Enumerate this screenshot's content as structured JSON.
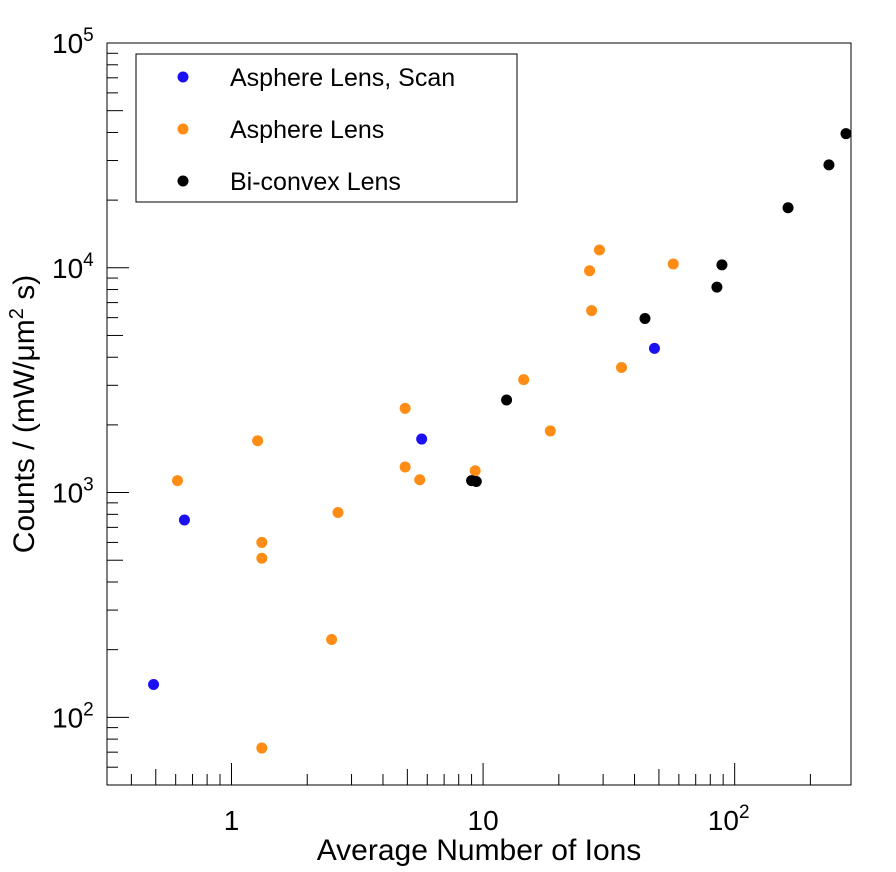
{
  "chart_data": {
    "type": "scatter",
    "xlabel": "Average Number of Ions",
    "ylabel_main": "Counts / (mW/μm",
    "ylabel_sup": "2",
    "ylabel_end": " s)",
    "x_scale": "log",
    "y_scale": "log",
    "xlim": [
      0.32,
      290
    ],
    "ylim": [
      50,
      100000
    ],
    "grid": false,
    "legend_position": "top-left",
    "x_ticks": [
      {
        "value": 1,
        "base": "1",
        "exp": ""
      },
      {
        "value": 10,
        "base": "10",
        "exp": ""
      },
      {
        "value": 100,
        "base": "10",
        "exp": "2"
      }
    ],
    "y_ticks": [
      {
        "value": 100,
        "base": "10",
        "exp": "2"
      },
      {
        "value": 1000,
        "base": "10",
        "exp": "3"
      },
      {
        "value": 10000,
        "base": "10",
        "exp": "4"
      },
      {
        "value": 100000,
        "base": "10",
        "exp": "5"
      }
    ],
    "series": [
      {
        "name": "Asphere Lens, Scan",
        "color": "#1a10f0",
        "points": [
          [
            0.49,
            140
          ],
          [
            0.65,
            755
          ],
          [
            5.7,
            1730
          ],
          [
            48,
            4380
          ]
        ]
      },
      {
        "name": "Asphere Lens",
        "color": "#ff8c14",
        "points": [
          [
            0.61,
            1130
          ],
          [
            1.27,
            1700
          ],
          [
            1.32,
            600
          ],
          [
            1.32,
            510
          ],
          [
            1.32,
            73
          ],
          [
            2.5,
            222
          ],
          [
            2.65,
            815
          ],
          [
            4.9,
            2370
          ],
          [
            4.9,
            1300
          ],
          [
            5.6,
            1140
          ],
          [
            9.3,
            1250
          ],
          [
            14.5,
            3180
          ],
          [
            18.5,
            1880
          ],
          [
            26.5,
            9700
          ],
          [
            27,
            6450
          ],
          [
            29,
            12000
          ],
          [
            35.5,
            3600
          ],
          [
            57,
            10400
          ]
        ]
      },
      {
        "name": "Bi-convex Lens",
        "color": "#000000",
        "points": [
          [
            9,
            1130
          ],
          [
            9.4,
            1120
          ],
          [
            12.4,
            2580
          ],
          [
            44,
            5950
          ],
          [
            85,
            8200
          ],
          [
            89,
            10300
          ],
          [
            163,
            18500
          ],
          [
            237,
            28700
          ],
          [
            277,
            39500
          ]
        ]
      }
    ]
  }
}
